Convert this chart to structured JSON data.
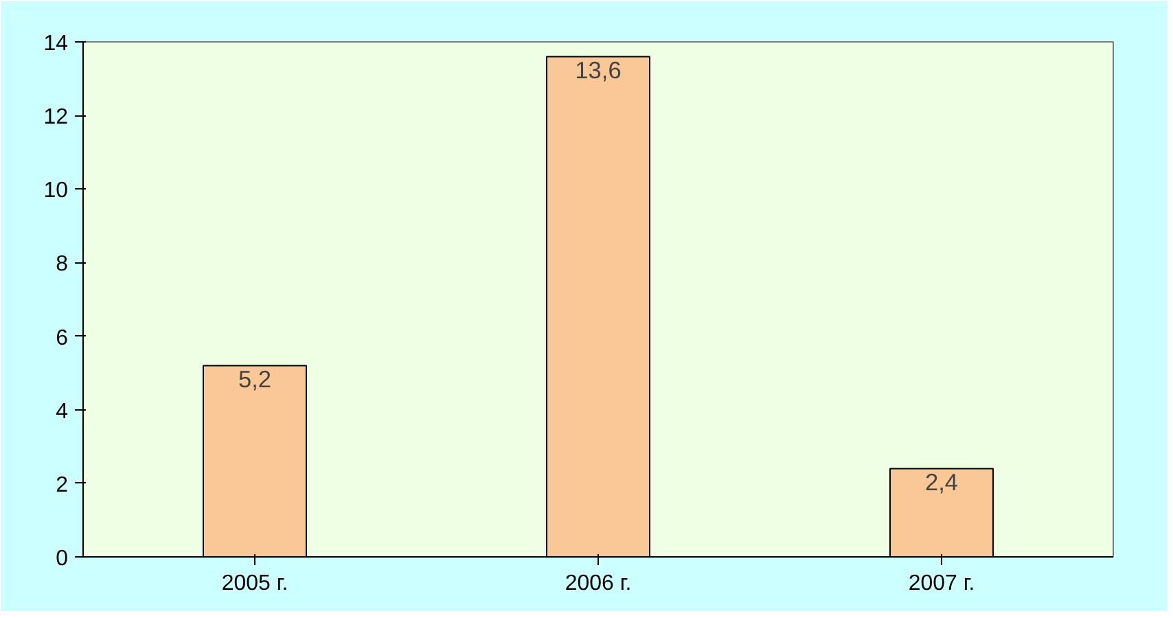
{
  "chart_data": {
    "type": "bar",
    "categories": [
      "2005 г.",
      "2006 г.",
      "2007 г."
    ],
    "values": [
      5.2,
      13.6,
      2.4
    ],
    "value_labels": [
      "5,2",
      "13,6",
      "2,4"
    ],
    "color": "#f9c896",
    "ylim": [
      0,
      14
    ],
    "yticks": [
      0,
      2,
      4,
      6,
      8,
      10,
      12,
      14
    ],
    "grid": false
  }
}
